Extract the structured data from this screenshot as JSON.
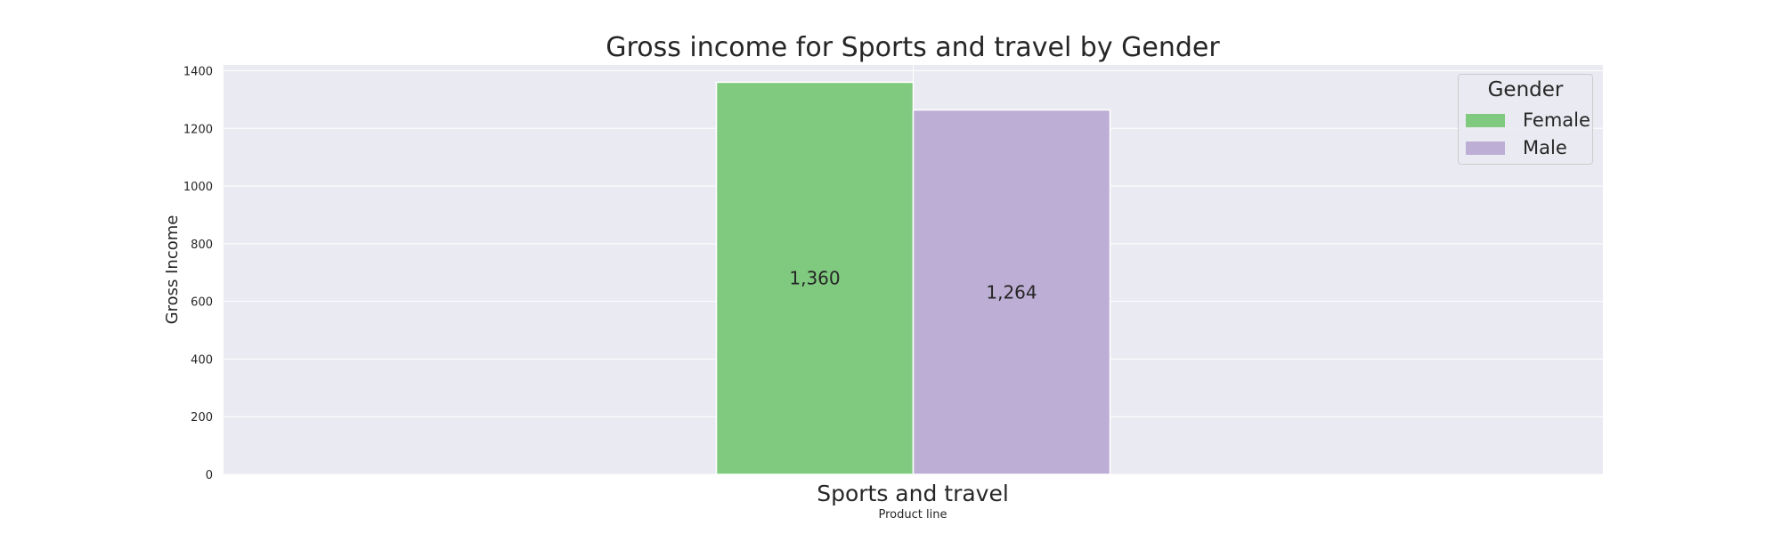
{
  "chart_data": {
    "type": "bar",
    "title": "Gross income for Sports and travel by Gender",
    "xlabel": "Product line",
    "ylabel": "Gross Income",
    "categories": [
      "Sports and travel"
    ],
    "series": [
      {
        "name": "Female",
        "values": [
          1360
        ],
        "color": "#80ca80",
        "label": "1,360"
      },
      {
        "name": "Male",
        "values": [
          1264
        ],
        "color": "#bdaed5",
        "label": "1,264"
      }
    ],
    "ylim": [
      0,
      1420
    ],
    "yticks": [
      0,
      200,
      400,
      600,
      800,
      1000,
      1200,
      1400
    ],
    "grid": true,
    "legend": {
      "title": "Gender",
      "position": "top-right"
    },
    "colors": {
      "background": "#eaeaf2",
      "grid": "#ffffff",
      "text": "#262626"
    }
  }
}
